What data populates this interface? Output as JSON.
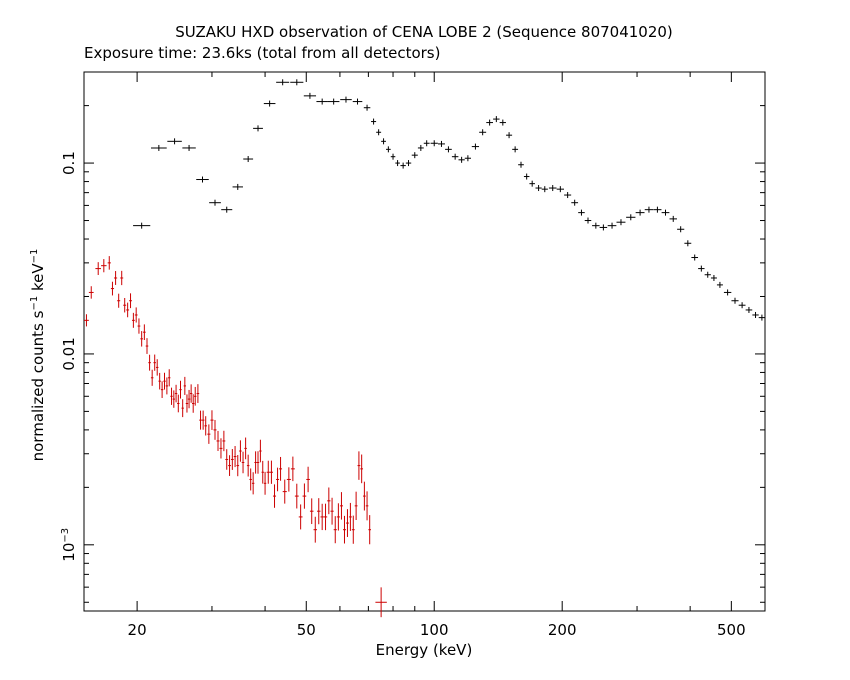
{
  "chart_data": {
    "type": "scatter",
    "title": "SUZAKU HXD observation of CENA LOBE 2 (Sequence 807041020)",
    "subtitle": "Exposure time: 23.6ks (total from all detectors)",
    "xlabel": "Energy (keV)",
    "ylabel": "normalized counts s",
    "ylabel_sup1": "−1",
    "ylabel_mid": " keV",
    "ylabel_sup2": "−1",
    "x_scale": "log",
    "y_scale": "log",
    "xlim": [
      15,
      600
    ],
    "ylim": [
      0.00045,
      0.3
    ],
    "grid": false,
    "x_ticks": [
      {
        "value": 20,
        "label": "20"
      },
      {
        "value": 50,
        "label": "50"
      },
      {
        "value": 100,
        "label": "100"
      },
      {
        "value": 200,
        "label": "200"
      },
      {
        "value": 500,
        "label": "500"
      }
    ],
    "y_ticks": [
      {
        "value": 0.1,
        "label": "0.1"
      },
      {
        "value": 0.01,
        "label": "0.01"
      },
      {
        "value": 0.001,
        "label": "10",
        "sup": "−3"
      }
    ],
    "series": [
      {
        "color": "#000000",
        "points": [
          [
            20.5,
            0.047
          ],
          [
            22.5,
            0.12
          ],
          [
            24.5,
            0.13
          ],
          [
            26.5,
            0.12
          ],
          [
            28.5,
            0.082
          ],
          [
            30.5,
            0.062
          ],
          [
            32.5,
            0.057
          ],
          [
            34.5,
            0.075
          ],
          [
            36.5,
            0.105
          ],
          [
            38.5,
            0.152
          ],
          [
            41,
            0.205
          ],
          [
            44,
            0.265
          ],
          [
            47.5,
            0.265
          ],
          [
            51,
            0.225
          ],
          [
            54.5,
            0.21
          ],
          [
            58,
            0.21
          ],
          [
            62,
            0.215
          ],
          [
            66,
            0.21
          ],
          [
            69.5,
            0.195
          ],
          [
            72,
            0.165
          ],
          [
            74,
            0.145
          ],
          [
            76,
            0.13
          ],
          [
            78,
            0.118
          ],
          [
            80,
            0.108
          ],
          [
            82,
            0.1
          ],
          [
            84.5,
            0.097
          ],
          [
            87,
            0.1
          ],
          [
            90,
            0.11
          ],
          [
            93,
            0.12
          ],
          [
            96,
            0.127
          ],
          [
            100,
            0.127
          ],
          [
            104,
            0.126
          ],
          [
            108,
            0.118
          ],
          [
            112,
            0.108
          ],
          [
            116,
            0.104
          ],
          [
            120,
            0.106
          ],
          [
            125,
            0.122
          ],
          [
            130,
            0.145
          ],
          [
            135,
            0.163
          ],
          [
            140,
            0.17
          ],
          [
            145,
            0.163
          ],
          [
            150,
            0.14
          ],
          [
            155,
            0.118
          ],
          [
            160,
            0.098
          ],
          [
            165,
            0.085
          ],
          [
            170,
            0.078
          ],
          [
            176,
            0.074
          ],
          [
            182,
            0.073
          ],
          [
            190,
            0.074
          ],
          [
            198,
            0.073
          ],
          [
            206,
            0.068
          ],
          [
            214,
            0.062
          ],
          [
            222,
            0.055
          ],
          [
            230,
            0.05
          ],
          [
            240,
            0.047
          ],
          [
            250,
            0.046
          ],
          [
            262,
            0.047
          ],
          [
            275,
            0.049
          ],
          [
            290,
            0.052
          ],
          [
            305,
            0.055
          ],
          [
            320,
            0.057
          ],
          [
            335,
            0.057
          ],
          [
            350,
            0.055
          ],
          [
            365,
            0.051
          ],
          [
            380,
            0.045
          ],
          [
            395,
            0.038
          ],
          [
            410,
            0.032
          ],
          [
            425,
            0.028
          ],
          [
            440,
            0.026
          ],
          [
            455,
            0.025
          ],
          [
            470,
            0.023
          ],
          [
            490,
            0.021
          ],
          [
            510,
            0.019
          ],
          [
            530,
            0.018
          ],
          [
            550,
            0.017
          ],
          [
            570,
            0.016
          ],
          [
            590,
            0.0155
          ]
        ]
      },
      {
        "color": "#cc0000",
        "points": [
          [
            15.2,
            0.015
          ],
          [
            15.6,
            0.021
          ],
          [
            16.2,
            0.028
          ],
          [
            16.7,
            0.029
          ],
          [
            17.2,
            0.03
          ],
          [
            17.5,
            0.022
          ],
          [
            17.8,
            0.025
          ],
          [
            18.1,
            0.019
          ],
          [
            18.4,
            0.025
          ],
          [
            18.7,
            0.018
          ],
          [
            19.0,
            0.017
          ],
          [
            19.3,
            0.019
          ],
          [
            19.6,
            0.015
          ],
          [
            19.9,
            0.016
          ],
          [
            20.2,
            0.014
          ],
          [
            20.5,
            0.012
          ],
          [
            20.8,
            0.013
          ],
          [
            21.1,
            0.011
          ],
          [
            21.4,
            0.009
          ],
          [
            21.7,
            0.0075
          ],
          [
            22.0,
            0.009
          ],
          [
            22.3,
            0.0085
          ],
          [
            22.6,
            0.0072
          ],
          [
            22.9,
            0.0065
          ],
          [
            23.2,
            0.0072
          ],
          [
            23.5,
            0.0068
          ],
          [
            23.8,
            0.0075
          ],
          [
            24.1,
            0.006
          ],
          [
            24.4,
            0.0058
          ],
          [
            24.7,
            0.0062
          ],
          [
            25.0,
            0.0055
          ],
          [
            25.3,
            0.0065
          ],
          [
            25.6,
            0.0052
          ],
          [
            25.9,
            0.0068
          ],
          [
            26.2,
            0.0055
          ],
          [
            26.5,
            0.0058
          ],
          [
            26.8,
            0.0062
          ],
          [
            27.1,
            0.0055
          ],
          [
            27.4,
            0.006
          ],
          [
            27.8,
            0.0062
          ],
          [
            28.2,
            0.0045
          ],
          [
            28.6,
            0.0045
          ],
          [
            29.0,
            0.0042
          ],
          [
            29.5,
            0.0038
          ],
          [
            30.0,
            0.0045
          ],
          [
            30.5,
            0.004
          ],
          [
            31.0,
            0.0035
          ],
          [
            31.5,
            0.0032
          ],
          [
            32.0,
            0.0035
          ],
          [
            32.5,
            0.0028
          ],
          [
            33.0,
            0.0026
          ],
          [
            33.5,
            0.0028
          ],
          [
            34.0,
            0.0029
          ],
          [
            34.5,
            0.0026
          ],
          [
            35.0,
            0.0031
          ],
          [
            35.5,
            0.0027
          ],
          [
            36.0,
            0.0032
          ],
          [
            36.5,
            0.0026
          ],
          [
            37.0,
            0.0022
          ],
          [
            37.5,
            0.0021
          ],
          [
            38.0,
            0.0027
          ],
          [
            38.5,
            0.0027
          ],
          [
            39.0,
            0.0031
          ],
          [
            39.5,
            0.0024
          ],
          [
            40.0,
            0.0021
          ],
          [
            40.7,
            0.0024
          ],
          [
            41.4,
            0.0024
          ],
          [
            42.1,
            0.0018
          ],
          [
            42.8,
            0.0022
          ],
          [
            43.5,
            0.0025
          ],
          [
            44.5,
            0.0019
          ],
          [
            45.5,
            0.0022
          ],
          [
            46.5,
            0.0025
          ],
          [
            47.5,
            0.0018
          ],
          [
            48.5,
            0.0014
          ],
          [
            49.5,
            0.0018
          ],
          [
            50.5,
            0.0022
          ],
          [
            51.5,
            0.0015
          ],
          [
            52.5,
            0.0012
          ],
          [
            53.5,
            0.0015
          ],
          [
            54.5,
            0.0014
          ],
          [
            55.5,
            0.0014
          ],
          [
            56.5,
            0.0017
          ],
          [
            57.5,
            0.0015
          ],
          [
            58.5,
            0.0012
          ],
          [
            59.5,
            0.0014
          ],
          [
            60.5,
            0.0016
          ],
          [
            61.5,
            0.0012
          ],
          [
            62.5,
            0.0013
          ],
          [
            63.5,
            0.0014
          ],
          [
            64.5,
            0.0012
          ],
          [
            65.5,
            0.0016
          ],
          [
            66.5,
            0.0026
          ],
          [
            67.5,
            0.0025
          ],
          [
            68.5,
            0.0018
          ],
          [
            69.5,
            0.0016
          ],
          [
            70.5,
            0.0012
          ],
          [
            75,
            0.0005
          ]
        ]
      }
    ]
  }
}
